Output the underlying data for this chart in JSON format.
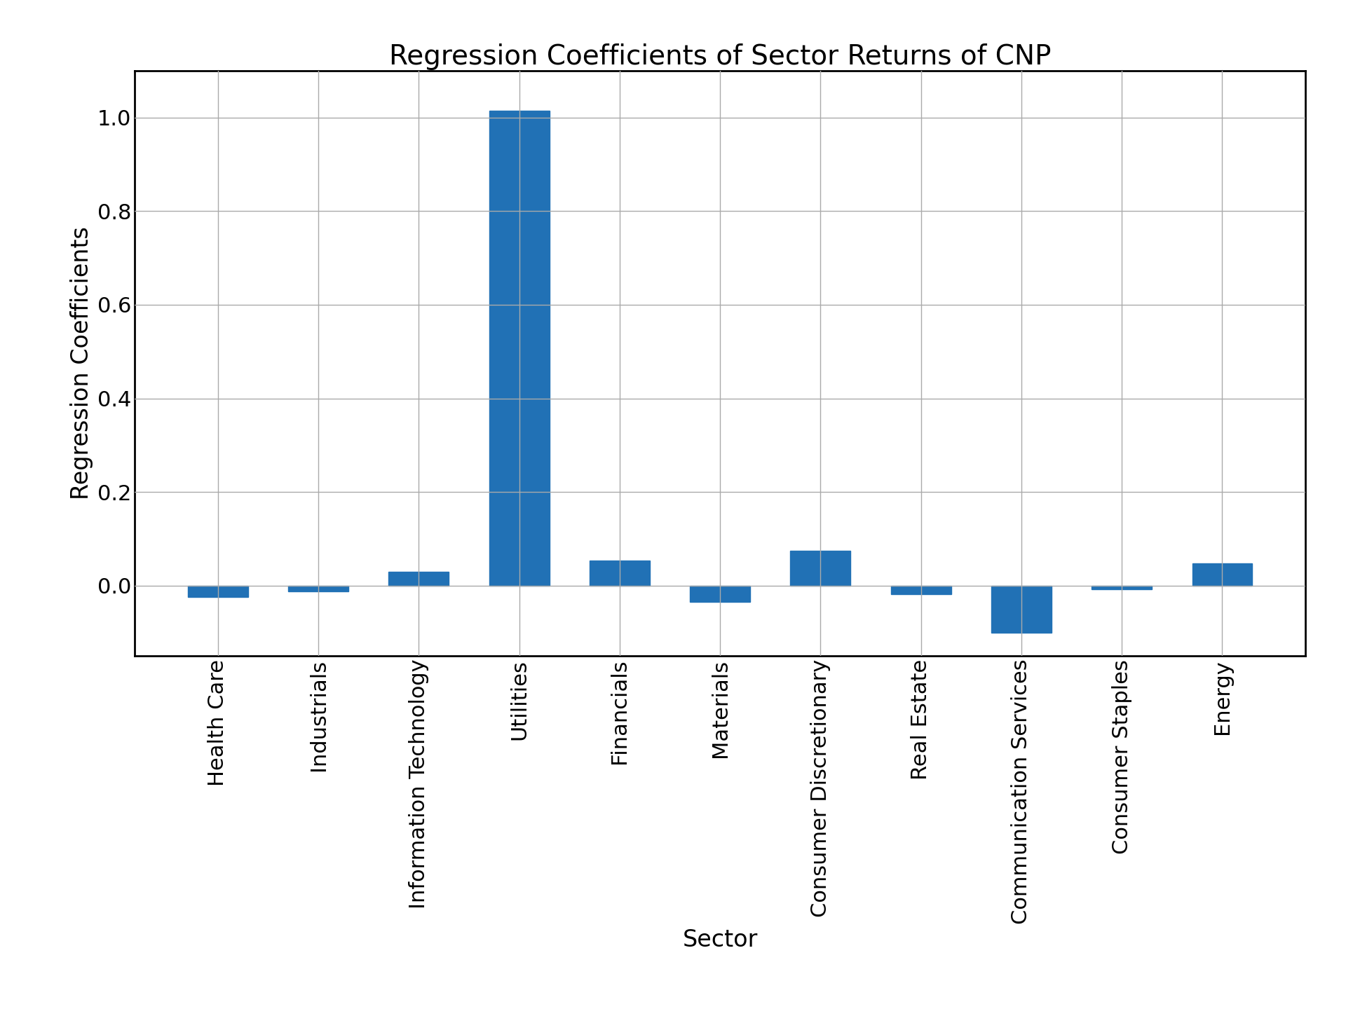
{
  "title": "Regression Coefficients of Sector Returns of CNP",
  "xlabel": "Sector",
  "ylabel": "Regression Coefficients",
  "categories": [
    "Health Care",
    "Industrials",
    "Information Technology",
    "Utilities",
    "Financials",
    "Materials",
    "Consumer Discretionary",
    "Real Estate",
    "Communication Services",
    "Consumer Staples",
    "Energy"
  ],
  "values": [
    -0.025,
    -0.012,
    0.03,
    1.015,
    0.053,
    -0.035,
    0.075,
    -0.018,
    -0.1,
    -0.008,
    0.048
  ],
  "bar_color": "#2171b5",
  "background_color": "#ffffff",
  "grid_color": "#aaaaaa",
  "title_fontsize": 28,
  "label_fontsize": 24,
  "tick_fontsize": 22,
  "ylim": [
    -0.15,
    1.1
  ]
}
